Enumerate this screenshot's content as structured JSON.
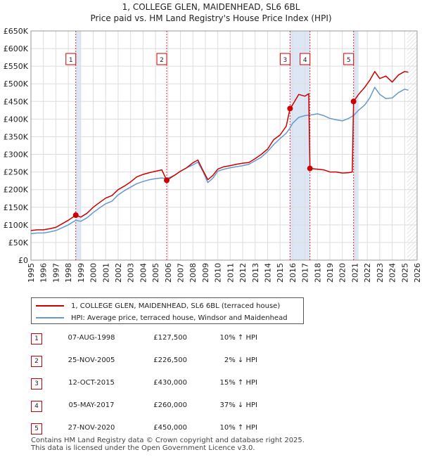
{
  "title": "1, COLLEGE GLEN, MAIDENHEAD, SL6 6BL",
  "subtitle": "Price paid vs. HM Land Registry's House Price Index (HPI)",
  "colors": {
    "property": "#cc0000",
    "hpi": "#6699cc",
    "band": "#dde6f5",
    "grid": "#dddddd"
  },
  "chart_data": {
    "type": "line",
    "title": "1, COLLEGE GLEN, MAIDENHEAD, SL6 6BL",
    "subtitle": "Price paid vs. HM Land Registry's House Price Index (HPI)",
    "xlabel": "",
    "ylabel": "",
    "xlim": [
      1995,
      2026
    ],
    "ylim": [
      0,
      650000
    ],
    "y_ticks": [
      0,
      50000,
      100000,
      150000,
      200000,
      250000,
      300000,
      350000,
      400000,
      450000,
      500000,
      550000,
      600000,
      650000
    ],
    "y_tick_labels": [
      "£0",
      "£50K",
      "£100K",
      "£150K",
      "£200K",
      "£250K",
      "£300K",
      "£350K",
      "£400K",
      "£450K",
      "£500K",
      "£550K",
      "£600K",
      "£650K"
    ],
    "x_tick_labels": [
      "1995",
      "1996",
      "1997",
      "1998",
      "1999",
      "2000",
      "2001",
      "2002",
      "2003",
      "2004",
      "2005",
      "2006",
      "2007",
      "2008",
      "2009",
      "2010",
      "2011",
      "2012",
      "2013",
      "2014",
      "2015",
      "2016",
      "2017",
      "2018",
      "2019",
      "2020",
      "2021",
      "2022",
      "2023",
      "2024",
      "2025",
      "2026"
    ],
    "grid": true,
    "future_band_start": 2025.2,
    "series": [
      {
        "name": "1, COLLEGE GLEN, MAIDENHEAD, SL6 6BL (terraced house)",
        "color": "#cc0000",
        "points": [
          [
            1995.0,
            84000
          ],
          [
            1995.5,
            86000
          ],
          [
            1996.0,
            86000
          ],
          [
            1996.5,
            89000
          ],
          [
            1997.0,
            93000
          ],
          [
            1997.5,
            103000
          ],
          [
            1998.0,
            113000
          ],
          [
            1998.6,
            127500
          ],
          [
            1999.0,
            122000
          ],
          [
            1999.5,
            133000
          ],
          [
            2000.0,
            150000
          ],
          [
            2000.5,
            163000
          ],
          [
            2001.0,
            176000
          ],
          [
            2001.5,
            183000
          ],
          [
            2002.0,
            200000
          ],
          [
            2002.5,
            210000
          ],
          [
            2003.0,
            222000
          ],
          [
            2003.5,
            236000
          ],
          [
            2004.0,
            243000
          ],
          [
            2004.5,
            248000
          ],
          [
            2005.0,
            252000
          ],
          [
            2005.5,
            256000
          ],
          [
            2005.9,
            226500
          ],
          [
            2006.5,
            240000
          ],
          [
            2007.0,
            252000
          ],
          [
            2007.5,
            262000
          ],
          [
            2008.0,
            276000
          ],
          [
            2008.4,
            284000
          ],
          [
            2008.8,
            255000
          ],
          [
            2009.2,
            228000
          ],
          [
            2009.6,
            240000
          ],
          [
            2010.0,
            258000
          ],
          [
            2010.5,
            265000
          ],
          [
            2011.0,
            268000
          ],
          [
            2011.5,
            272000
          ],
          [
            2012.0,
            275000
          ],
          [
            2012.5,
            277000
          ],
          [
            2013.0,
            288000
          ],
          [
            2013.5,
            300000
          ],
          [
            2014.0,
            315000
          ],
          [
            2014.5,
            342000
          ],
          [
            2015.0,
            355000
          ],
          [
            2015.5,
            380000
          ],
          [
            2015.8,
            430000
          ],
          [
            2016.0,
            440000
          ],
          [
            2016.5,
            470000
          ],
          [
            2017.0,
            465000
          ],
          [
            2017.3,
            472000
          ],
          [
            2017.4,
            260000
          ],
          [
            2018.0,
            258000
          ],
          [
            2018.5,
            256000
          ],
          [
            2019.0,
            250000
          ],
          [
            2019.5,
            250000
          ],
          [
            2020.0,
            247000
          ],
          [
            2020.5,
            248000
          ],
          [
            2020.8,
            250000
          ],
          [
            2020.9,
            450000
          ],
          [
            2021.3,
            470000
          ],
          [
            2021.8,
            490000
          ],
          [
            2022.2,
            510000
          ],
          [
            2022.6,
            535000
          ],
          [
            2023.0,
            515000
          ],
          [
            2023.5,
            522000
          ],
          [
            2024.0,
            505000
          ],
          [
            2024.5,
            525000
          ],
          [
            2025.0,
            535000
          ],
          [
            2025.3,
            533000
          ]
        ]
      },
      {
        "name": "HPI: Average price, terraced house, Windsor and Maidenhead",
        "color": "#6699cc",
        "points": [
          [
            1995.0,
            75000
          ],
          [
            1995.5,
            77000
          ],
          [
            1996.0,
            77000
          ],
          [
            1996.5,
            80000
          ],
          [
            1997.0,
            84000
          ],
          [
            1997.5,
            92000
          ],
          [
            1998.0,
            100000
          ],
          [
            1998.6,
            113000
          ],
          [
            1999.0,
            110000
          ],
          [
            1999.5,
            120000
          ],
          [
            2000.0,
            135000
          ],
          [
            2000.5,
            148000
          ],
          [
            2001.0,
            160000
          ],
          [
            2001.5,
            167000
          ],
          [
            2002.0,
            185000
          ],
          [
            2002.5,
            197000
          ],
          [
            2003.0,
            207000
          ],
          [
            2003.5,
            217000
          ],
          [
            2004.0,
            223000
          ],
          [
            2004.5,
            228000
          ],
          [
            2005.0,
            231000
          ],
          [
            2005.5,
            233000
          ],
          [
            2005.9,
            231000
          ],
          [
            2006.5,
            240000
          ],
          [
            2007.0,
            252000
          ],
          [
            2007.5,
            262000
          ],
          [
            2008.0,
            270000
          ],
          [
            2008.4,
            278000
          ],
          [
            2008.8,
            252000
          ],
          [
            2009.2,
            220000
          ],
          [
            2009.6,
            232000
          ],
          [
            2010.0,
            252000
          ],
          [
            2010.5,
            258000
          ],
          [
            2011.0,
            262000
          ],
          [
            2011.5,
            265000
          ],
          [
            2012.0,
            268000
          ],
          [
            2012.5,
            272000
          ],
          [
            2013.0,
            282000
          ],
          [
            2013.5,
            292000
          ],
          [
            2014.0,
            308000
          ],
          [
            2014.5,
            328000
          ],
          [
            2015.0,
            345000
          ],
          [
            2015.5,
            360000
          ],
          [
            2015.8,
            375000
          ],
          [
            2016.0,
            388000
          ],
          [
            2016.5,
            405000
          ],
          [
            2017.0,
            410000
          ],
          [
            2017.5,
            412000
          ],
          [
            2018.0,
            415000
          ],
          [
            2018.5,
            410000
          ],
          [
            2019.0,
            402000
          ],
          [
            2019.5,
            398000
          ],
          [
            2020.0,
            395000
          ],
          [
            2020.5,
            402000
          ],
          [
            2020.9,
            410000
          ],
          [
            2021.3,
            425000
          ],
          [
            2021.8,
            440000
          ],
          [
            2022.2,
            460000
          ],
          [
            2022.6,
            490000
          ],
          [
            2023.0,
            470000
          ],
          [
            2023.5,
            458000
          ],
          [
            2024.0,
            460000
          ],
          [
            2024.5,
            475000
          ],
          [
            2025.0,
            485000
          ],
          [
            2025.3,
            482000
          ]
        ]
      }
    ],
    "sales": [
      {
        "num": "1",
        "x": 1998.6,
        "y": 127500,
        "date": "07-AUG-1998",
        "price": "£127,500",
        "hpi": "10% ↑ HPI"
      },
      {
        "num": "2",
        "x": 2005.9,
        "y": 226500,
        "date": "25-NOV-2005",
        "price": "£226,500",
        "hpi": "2% ↓ HPI"
      },
      {
        "num": "3",
        "x": 2015.8,
        "y": 430000,
        "date": "12-OCT-2015",
        "price": "£430,000",
        "hpi": "15% ↑ HPI"
      },
      {
        "num": "4",
        "x": 2017.4,
        "y": 260000,
        "date": "05-MAY-2017",
        "price": "£260,000",
        "hpi": "37% ↓ HPI"
      },
      {
        "num": "5",
        "x": 2020.9,
        "y": 450000,
        "date": "27-NOV-2020",
        "price": "£450,000",
        "hpi": "10% ↑ HPI"
      }
    ],
    "bands": [
      [
        1998.6,
        1999.0
      ],
      [
        2015.8,
        2017.4
      ],
      [
        2020.9,
        2021.3
      ]
    ],
    "legend_position": "below"
  },
  "legend": {
    "property_label": "1, COLLEGE GLEN, MAIDENHEAD, SL6 6BL (terraced house)",
    "hpi_label": "HPI: Average price, terraced house, Windsor and Maidenhead"
  },
  "footer": {
    "line1": "Contains HM Land Registry data © Crown copyright and database right 2025.",
    "line2": "This data is licensed under the Open Government Licence v3.0."
  }
}
